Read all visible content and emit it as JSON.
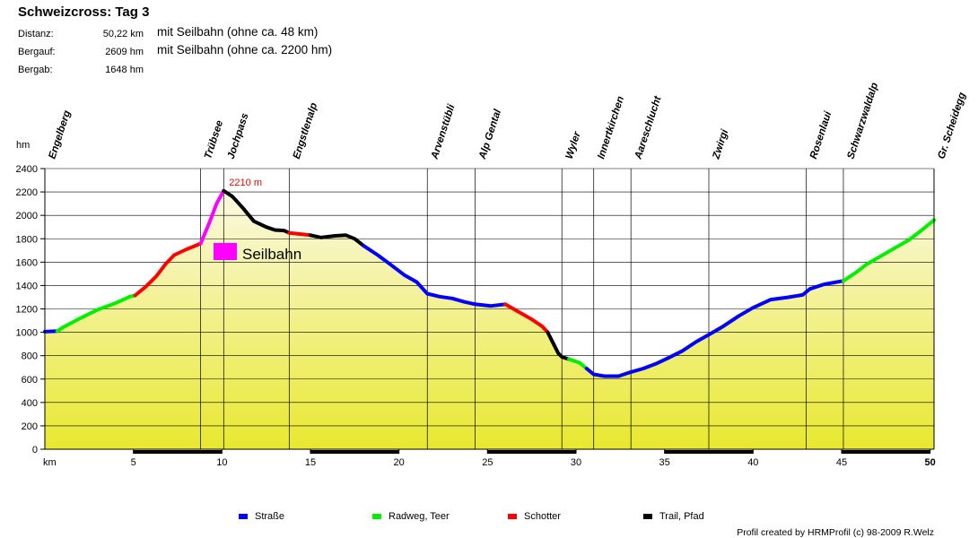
{
  "chart_data": {
    "type": "area",
    "title": "Schweizcross: Tag 3",
    "stats": [
      {
        "label": "Distanz:",
        "value": "50,22 km",
        "note": "mit Seilbahn (ohne ca. 48 km)"
      },
      {
        "label": "Bergauf:",
        "value": "2609 hm",
        "note": "mit Seilbahn (ohne ca. 2200 hm)"
      },
      {
        "label": "Bergab:",
        "value": "1648 hm",
        "note": ""
      }
    ],
    "ylabel": "hm",
    "xlabel": "km",
    "xlim": [
      0,
      50.22
    ],
    "ylim": [
      0,
      2400
    ],
    "x_ticks": [
      5,
      10,
      15,
      20,
      25,
      30,
      35,
      40,
      45,
      50
    ],
    "y_ticks": [
      0,
      200,
      400,
      600,
      800,
      1000,
      1200,
      1400,
      1600,
      1800,
      2000,
      2200,
      2400
    ],
    "max_label": "2210 m",
    "max_point": {
      "x": 10.1,
      "y": 2210
    },
    "cable_car_label": "Seilbahn",
    "colors": {
      "strasse": "#0000ff",
      "radweg": "#00ee00",
      "schotter": "#ff0000",
      "trail": "#000000",
      "seilbahn": "#ff00ff",
      "fill_top": "#fbf9e3",
      "fill_bottom": "#e8e830"
    },
    "legend": [
      {
        "key": "strasse",
        "label": "Straße"
      },
      {
        "key": "radweg",
        "label": "Radweg, Teer"
      },
      {
        "key": "schotter",
        "label": "Schotter"
      },
      {
        "key": "trail",
        "label": "Trail, Pfad"
      }
    ],
    "places": [
      {
        "name": "Engelberg",
        "km": 0
      },
      {
        "name": "Trübsee",
        "km": 8.8
      },
      {
        "name": "Jochpass",
        "km": 10.1
      },
      {
        "name": "Engstlenalp",
        "km": 13.8
      },
      {
        "name": "Arvenstübli",
        "km": 21.6
      },
      {
        "name": "Alp Gental",
        "km": 24.3
      },
      {
        "name": "Wyler",
        "km": 29.2
      },
      {
        "name": "Innertkirchen",
        "km": 31.0
      },
      {
        "name": "Aareschlucht",
        "km": 33.1
      },
      {
        "name": "Zwirgi",
        "km": 37.5
      },
      {
        "name": "Rosenlaui",
        "km": 43.0
      },
      {
        "name": "Schwarzwaldalp",
        "km": 45.1
      },
      {
        "name": "Gr. Scheidegg",
        "km": 50.22
      }
    ],
    "series": [
      {
        "type": "strasse",
        "points": [
          [
            0,
            1005
          ],
          [
            0.7,
            1010
          ]
        ]
      },
      {
        "type": "radweg",
        "points": [
          [
            0.7,
            1010
          ],
          [
            1,
            1040
          ],
          [
            2,
            1120
          ],
          [
            3,
            1195
          ],
          [
            4,
            1250
          ],
          [
            4.8,
            1305
          ],
          [
            5.1,
            1315
          ]
        ]
      },
      {
        "type": "schotter",
        "points": [
          [
            5.1,
            1315
          ],
          [
            5.7,
            1390
          ],
          [
            6.3,
            1480
          ],
          [
            6.8,
            1580
          ],
          [
            7.3,
            1660
          ],
          [
            8,
            1710
          ],
          [
            8.5,
            1740
          ],
          [
            8.8,
            1760
          ]
        ]
      },
      {
        "type": "seilbahn",
        "points": [
          [
            8.8,
            1760
          ],
          [
            9.3,
            1940
          ],
          [
            9.7,
            2100
          ],
          [
            10.1,
            2210
          ]
        ]
      },
      {
        "type": "trail",
        "points": [
          [
            10.1,
            2210
          ],
          [
            10.6,
            2160
          ],
          [
            11.2,
            2060
          ],
          [
            11.8,
            1950
          ],
          [
            12.5,
            1900
          ],
          [
            13,
            1875
          ],
          [
            13.5,
            1870
          ],
          [
            13.8,
            1850
          ]
        ]
      },
      {
        "type": "schotter",
        "points": [
          [
            13.8,
            1850
          ],
          [
            14.4,
            1840
          ],
          [
            15,
            1830
          ]
        ]
      },
      {
        "type": "trail",
        "points": [
          [
            15,
            1830
          ],
          [
            15.6,
            1810
          ],
          [
            16.4,
            1825
          ],
          [
            17,
            1830
          ],
          [
            17.5,
            1800
          ],
          [
            18,
            1740
          ]
        ]
      },
      {
        "type": "strasse",
        "points": [
          [
            18,
            1740
          ],
          [
            18.8,
            1660
          ],
          [
            19.6,
            1570
          ],
          [
            20.3,
            1490
          ],
          [
            21,
            1430
          ],
          [
            21.6,
            1330
          ],
          [
            22.3,
            1305
          ],
          [
            23,
            1290
          ],
          [
            23.7,
            1260
          ],
          [
            24.3,
            1240
          ],
          [
            25.2,
            1225
          ],
          [
            26,
            1240
          ]
        ]
      },
      {
        "type": "schotter",
        "points": [
          [
            26,
            1240
          ],
          [
            26.7,
            1180
          ],
          [
            27.5,
            1110
          ],
          [
            28.1,
            1050
          ],
          [
            28.4,
            1000
          ]
        ]
      },
      {
        "type": "trail",
        "points": [
          [
            28.4,
            1000
          ],
          [
            28.7,
            910
          ],
          [
            29,
            820
          ],
          [
            29.2,
            790
          ],
          [
            29.6,
            770
          ]
        ]
      },
      {
        "type": "radweg",
        "points": [
          [
            29.6,
            770
          ],
          [
            30.2,
            740
          ],
          [
            30.6,
            690
          ]
        ]
      },
      {
        "type": "strasse",
        "points": [
          [
            30.6,
            690
          ],
          [
            31,
            640
          ],
          [
            31.6,
            625
          ],
          [
            32.4,
            625
          ],
          [
            33.1,
            660
          ],
          [
            33.8,
            690
          ],
          [
            34.5,
            730
          ],
          [
            35.2,
            780
          ],
          [
            36,
            840
          ],
          [
            36.8,
            920
          ],
          [
            37.5,
            980
          ],
          [
            38.3,
            1050
          ],
          [
            39.2,
            1140
          ],
          [
            40,
            1210
          ],
          [
            41,
            1280
          ],
          [
            42,
            1300
          ],
          [
            42.8,
            1320
          ],
          [
            43.2,
            1370
          ],
          [
            44,
            1410
          ],
          [
            45.1,
            1440
          ]
        ]
      },
      {
        "type": "radweg",
        "points": [
          [
            45.1,
            1440
          ],
          [
            45.8,
            1510
          ],
          [
            46.4,
            1580
          ],
          [
            47.2,
            1650
          ],
          [
            48,
            1720
          ],
          [
            48.8,
            1790
          ],
          [
            49.5,
            1870
          ],
          [
            50.22,
            1960
          ]
        ]
      }
    ]
  },
  "credit": "Profil created by HRMProfil (c) 98-2009 R.Welz"
}
